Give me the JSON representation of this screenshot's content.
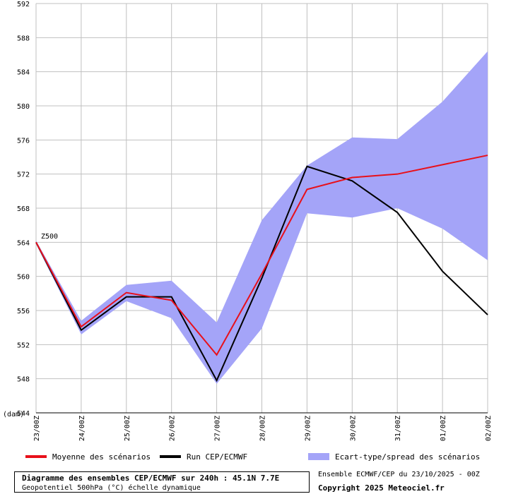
{
  "chart_data": {
    "type": "line",
    "label": "Z500",
    "unit_label": "(dam)",
    "categories": [
      "23/00Z",
      "24/00Z",
      "25/00Z",
      "26/00Z",
      "27/00Z",
      "28/00Z",
      "29/00Z",
      "30/00Z",
      "31/00Z",
      "01/00Z",
      "02/00Z"
    ],
    "ylim": [
      544,
      592
    ],
    "yticks": [
      544,
      548,
      552,
      556,
      560,
      564,
      568,
      572,
      576,
      580,
      584,
      588,
      592
    ],
    "grid": true,
    "series": [
      {
        "name": "Moyenne des scénarios",
        "color": "#e8101a",
        "values": [
          564.0,
          554.1,
          558.1,
          557.2,
          550.8,
          560.3,
          570.2,
          571.6,
          572.0,
          573.1,
          574.2
        ]
      },
      {
        "name": "Run CEP/ECMWF",
        "color": "#000000",
        "values": [
          564.0,
          553.7,
          557.6,
          557.6,
          547.8,
          559.8,
          572.9,
          571.2,
          567.5,
          560.6,
          555.5
        ]
      }
    ],
    "spread": {
      "name": "Ecart-type/spread des scénarios",
      "color": "#a4a4f8",
      "upper": [
        564.2,
        554.8,
        559.0,
        559.5,
        554.6,
        566.6,
        573.0,
        576.3,
        576.1,
        580.5,
        586.4
      ],
      "lower": [
        563.8,
        553.2,
        557.1,
        555.1,
        547.4,
        553.9,
        567.4,
        566.9,
        568.0,
        565.6,
        561.9
      ]
    }
  },
  "legend": {
    "mean_label": "Moyenne des scénarios",
    "run_label": "Run CEP/ECMWF",
    "spread_label": "Ecart-type/spread des scénarios"
  },
  "footer": {
    "title": "Diagramme des ensembles CEP/ECMWF sur 240h : 45.1N 7.7E",
    "subtitle": "Geopotentiel 500hPa (°C) échelle dynamique",
    "source": "Ensemble ECMWF/CEP du 23/10/2025 - 00Z",
    "copyright": "Copyright 2025 Meteociel.fr"
  }
}
